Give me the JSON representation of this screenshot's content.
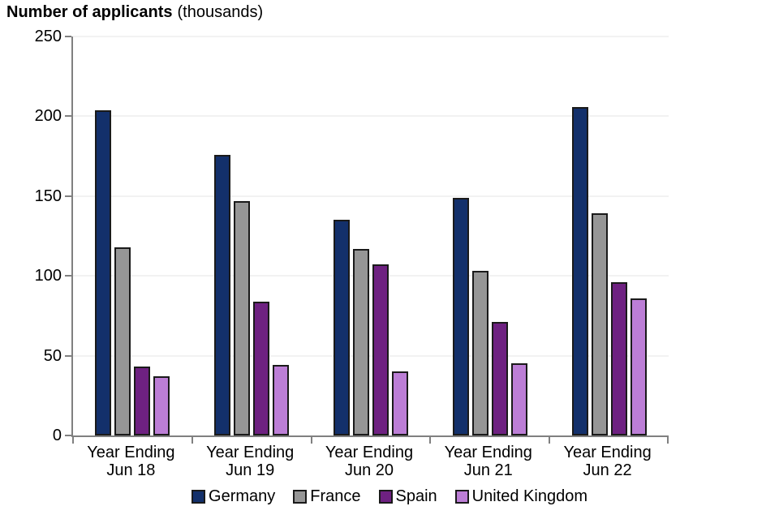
{
  "title": {
    "main": "Number of applicants",
    "unit": "(thousands)"
  },
  "chart_data": {
    "type": "bar",
    "categories": [
      {
        "line1": "Year Ending",
        "line2": "Jun 18"
      },
      {
        "line1": "Year Ending",
        "line2": "Jun 19"
      },
      {
        "line1": "Year Ending",
        "line2": "Jun 20"
      },
      {
        "line1": "Year Ending",
        "line2": "Jun 21"
      },
      {
        "line1": "Year Ending",
        "line2": "Jun 22"
      }
    ],
    "series": [
      {
        "name": "Germany",
        "color": "#13306b",
        "values": [
          204,
          176,
          135,
          149,
          206
        ]
      },
      {
        "name": "France",
        "color": "#969696",
        "values": [
          118,
          147,
          117,
          103,
          139
        ]
      },
      {
        "name": "Spain",
        "color": "#6e2181",
        "values": [
          43,
          84,
          107,
          71,
          96
        ]
      },
      {
        "name": "United Kingdom",
        "color": "#bc7ed6",
        "values": [
          37,
          44,
          40,
          45,
          86
        ]
      }
    ],
    "title": "Number of applicants (thousands)",
    "xlabel": "",
    "ylabel": "Number of applicants (thousands)",
    "ylim": [
      0,
      250
    ],
    "yticks": [
      0,
      50,
      100,
      150,
      200,
      250
    ],
    "grid": true,
    "legend_position": "bottom",
    "bar_border_color": "#1a1a1a",
    "axis_color": "#808080",
    "gridline_color": "#f2f2f2",
    "text_color": "#000000"
  }
}
